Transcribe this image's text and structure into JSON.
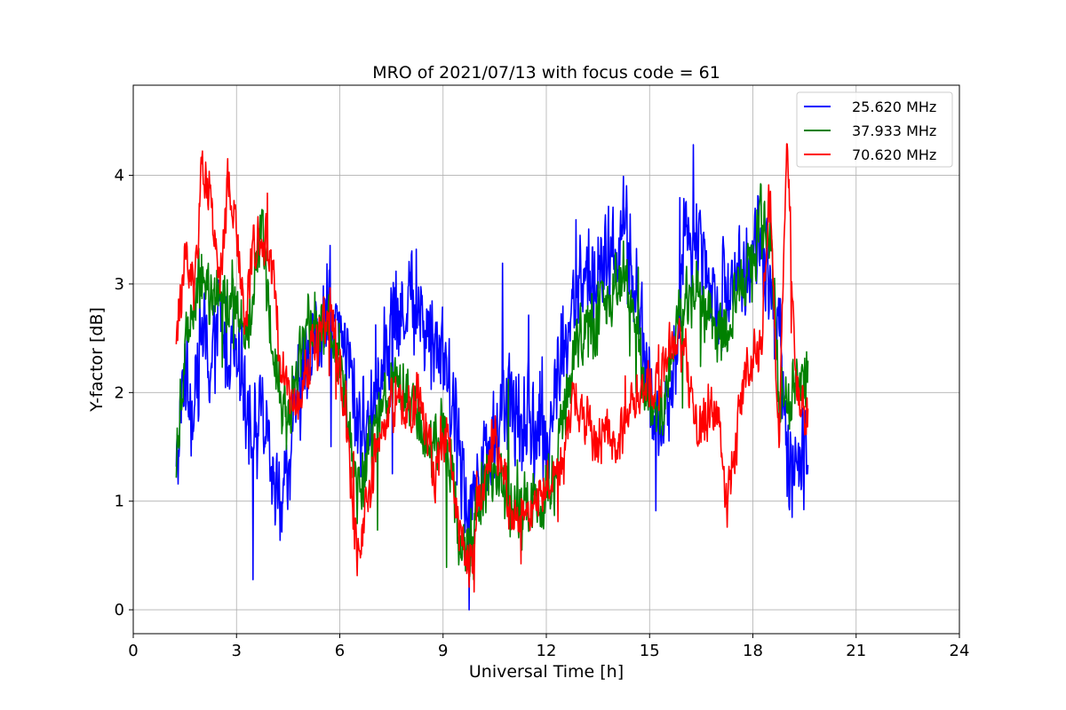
{
  "chart_data": {
    "type": "line",
    "title": "MRO of 2021/07/13 with focus code = 61",
    "xlabel": "Universal Time [h]",
    "ylabel": "Y-factor [dB]",
    "xlim": [
      0,
      24
    ],
    "ylim": [
      -0.22,
      4.83
    ],
    "x_ticks": [
      0,
      3,
      6,
      9,
      12,
      15,
      18,
      21,
      24
    ],
    "y_ticks": [
      0,
      1,
      2,
      3,
      4
    ],
    "grid": true,
    "legend_position": "top-right",
    "series": [
      {
        "name": "25.620 MHz",
        "color": "#0000ff",
        "x": [
          1.25,
          1.5,
          1.75,
          2.0,
          2.25,
          2.5,
          2.75,
          3.0,
          3.25,
          3.5,
          3.75,
          4.0,
          4.25,
          4.5,
          4.75,
          5.0,
          5.25,
          5.5,
          5.75,
          6.0,
          6.25,
          6.5,
          6.75,
          7.0,
          7.25,
          7.5,
          7.75,
          8.0,
          8.25,
          8.5,
          8.75,
          9.0,
          9.25,
          9.5,
          9.75,
          10.0,
          10.25,
          10.5,
          10.75,
          11.0,
          11.25,
          11.5,
          11.75,
          12.0,
          12.25,
          12.5,
          12.75,
          13.0,
          13.25,
          13.5,
          13.75,
          14.0,
          14.25,
          14.5,
          14.75,
          15.0,
          15.25,
          15.5,
          15.75,
          16.0,
          16.25,
          16.5,
          16.75,
          17.0,
          17.25,
          17.5,
          17.75,
          18.0,
          18.25,
          18.5,
          18.75,
          19.0,
          19.25,
          19.6
        ],
        "y": [
          1.2,
          2.3,
          1.8,
          2.6,
          2.2,
          2.7,
          2.4,
          2.6,
          2.0,
          1.6,
          1.8,
          1.2,
          1.0,
          1.3,
          1.9,
          2.2,
          2.5,
          2.6,
          2.7,
          2.5,
          2.3,
          1.8,
          1.6,
          2.0,
          2.4,
          2.6,
          2.7,
          2.9,
          2.8,
          2.6,
          2.5,
          2.4,
          2.0,
          1.4,
          0.9,
          1.2,
          1.5,
          1.6,
          1.8,
          1.9,
          1.7,
          1.8,
          1.6,
          1.5,
          2.0,
          2.4,
          2.7,
          3.0,
          3.1,
          3.0,
          3.2,
          3.3,
          3.5,
          3.2,
          2.6,
          2.0,
          1.6,
          1.8,
          2.2,
          3.5,
          3.4,
          3.3,
          3.1,
          2.8,
          3.0,
          3.2,
          3.0,
          3.3,
          3.4,
          3.0,
          2.6,
          1.4,
          1.2,
          1.6
        ]
      },
      {
        "name": "37.933 MHz",
        "color": "#008000",
        "x": [
          1.25,
          1.5,
          1.75,
          2.0,
          2.25,
          2.5,
          2.75,
          3.0,
          3.25,
          3.5,
          3.75,
          4.0,
          4.25,
          4.5,
          4.75,
          5.0,
          5.25,
          5.5,
          5.75,
          6.0,
          6.25,
          6.5,
          6.75,
          7.0,
          7.25,
          7.5,
          7.75,
          8.0,
          8.25,
          8.5,
          8.75,
          9.0,
          9.25,
          9.5,
          9.75,
          10.0,
          10.25,
          10.5,
          10.75,
          11.0,
          11.25,
          11.5,
          11.75,
          12.0,
          12.25,
          12.5,
          12.75,
          13.0,
          13.25,
          13.5,
          13.75,
          14.0,
          14.25,
          14.5,
          14.75,
          15.0,
          15.25,
          15.5,
          15.75,
          16.0,
          16.25,
          16.5,
          16.75,
          17.0,
          17.25,
          17.5,
          17.75,
          18.0,
          18.25,
          18.5,
          18.75,
          19.0,
          19.25,
          19.6
        ],
        "y": [
          1.4,
          2.5,
          2.8,
          3.1,
          2.9,
          3.0,
          2.8,
          2.9,
          2.5,
          2.8,
          3.6,
          2.5,
          2.0,
          1.8,
          2.2,
          2.5,
          2.6,
          2.6,
          2.5,
          2.3,
          1.6,
          1.1,
          1.3,
          1.6,
          1.9,
          2.0,
          2.0,
          1.9,
          1.8,
          1.6,
          1.5,
          1.7,
          1.3,
          0.6,
          0.5,
          1.0,
          1.2,
          1.3,
          1.1,
          1.1,
          1.0,
          1.0,
          0.9,
          1.1,
          1.2,
          1.8,
          2.3,
          2.5,
          2.6,
          2.7,
          2.8,
          3.0,
          3.1,
          2.8,
          2.3,
          1.9,
          1.8,
          2.0,
          2.6,
          2.8,
          2.9,
          2.8,
          2.7,
          2.5,
          2.6,
          2.8,
          3.0,
          3.2,
          3.6,
          3.6,
          2.0,
          1.8,
          2.2,
          2.1
        ]
      },
      {
        "name": "70.620 MHz",
        "color": "#ff0000",
        "x": [
          1.25,
          1.5,
          1.75,
          2.0,
          2.25,
          2.5,
          2.75,
          3.0,
          3.25,
          3.5,
          3.75,
          4.0,
          4.25,
          4.5,
          4.75,
          5.0,
          5.25,
          5.5,
          5.75,
          6.0,
          6.25,
          6.5,
          6.75,
          7.0,
          7.25,
          7.5,
          7.75,
          8.0,
          8.25,
          8.5,
          8.75,
          9.0,
          9.25,
          9.5,
          9.75,
          10.0,
          10.25,
          10.5,
          10.75,
          11.0,
          11.25,
          11.5,
          11.75,
          12.0,
          12.25,
          12.5,
          12.75,
          13.0,
          13.25,
          13.5,
          13.75,
          14.0,
          14.25,
          14.5,
          14.75,
          15.0,
          15.25,
          15.5,
          15.75,
          16.0,
          16.25,
          16.5,
          16.75,
          17.0,
          17.25,
          17.5,
          17.75,
          18.0,
          18.25,
          18.5,
          18.75,
          19.0,
          19.25,
          19.6
        ],
        "y": [
          2.5,
          3.2,
          3.0,
          4.0,
          3.9,
          3.0,
          3.9,
          3.4,
          2.6,
          3.4,
          3.5,
          3.3,
          2.4,
          2.0,
          1.8,
          2.2,
          2.4,
          2.6,
          2.8,
          2.2,
          1.4,
          0.5,
          0.9,
          1.4,
          1.6,
          1.9,
          1.9,
          1.8,
          2.0,
          1.7,
          1.2,
          1.7,
          1.3,
          0.6,
          0.3,
          0.9,
          1.3,
          1.6,
          1.2,
          0.9,
          0.8,
          0.9,
          1.0,
          1.2,
          1.3,
          1.4,
          1.9,
          1.8,
          1.7,
          1.6,
          1.6,
          1.5,
          1.6,
          1.9,
          2.0,
          2.1,
          2.0,
          2.4,
          2.4,
          2.5,
          1.8,
          1.6,
          1.9,
          1.8,
          0.9,
          1.5,
          2.2,
          2.3,
          2.5,
          3.9,
          1.5,
          4.3,
          2.0,
          1.8
        ]
      }
    ]
  }
}
